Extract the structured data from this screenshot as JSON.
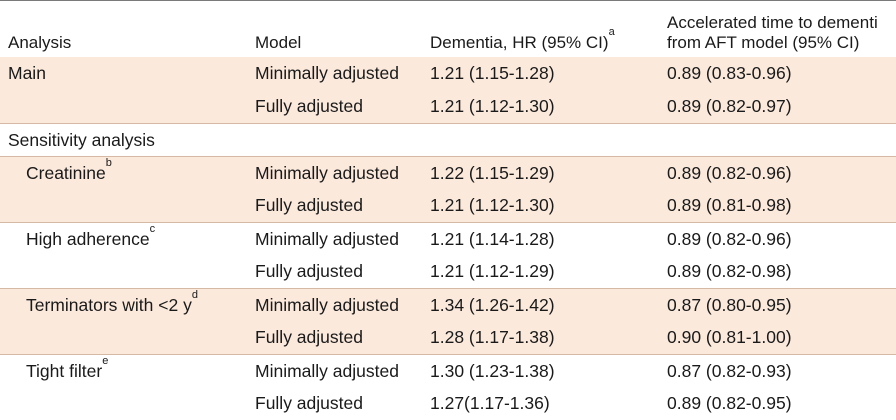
{
  "header": {
    "analysis": "Analysis",
    "model": "Model",
    "hr": "Dementia, HR (95% CI)",
    "hr_sup": "a",
    "aft_line1": "Accelerated time to dementi",
    "aft_line2": "from AFT model (95% CI)"
  },
  "rows": [
    {
      "analysis": "Main",
      "sup": "",
      "model": "Minimally adjusted",
      "hr": "1.21 (1.15-1.28)",
      "aft": "0.89 (0.83-0.96)"
    },
    {
      "analysis": "",
      "sup": "",
      "model": "Fully adjusted",
      "hr": "1.21 (1.12-1.30)",
      "aft": "0.89 (0.82-0.97)"
    },
    {
      "analysis": "Sensitivity analysis",
      "sup": "",
      "model": "",
      "hr": "",
      "aft": ""
    },
    {
      "analysis": "Creatinine",
      "sup": "b",
      "model": "Minimally adjusted",
      "hr": "1.22 (1.15-1.29)",
      "aft": "0.89 (0.82-0.96)"
    },
    {
      "analysis": "",
      "sup": "",
      "model": "Fully adjusted",
      "hr": "1.21 (1.12-1.30)",
      "aft": "0.89 (0.81-0.98)"
    },
    {
      "analysis": "High adherence",
      "sup": "c",
      "model": "Minimally adjusted",
      "hr": "1.21 (1.14-1.28)",
      "aft": "0.89 (0.82-0.96)"
    },
    {
      "analysis": "",
      "sup": "",
      "model": "Fully adjusted",
      "hr": "1.21 (1.12-1.29)",
      "aft": "0.89 (0.82-0.98)"
    },
    {
      "analysis": "Terminators with <2 y",
      "sup": "d",
      "model": "Minimally adjusted",
      "hr": "1.34 (1.26-1.42)",
      "aft": "0.87 (0.80-0.95)"
    },
    {
      "analysis": "",
      "sup": "",
      "model": "Fully adjusted",
      "hr": "1.28 (1.17-1.38)",
      "aft": "0.90 (0.81-1.00)"
    },
    {
      "analysis": "Tight filter",
      "sup": "e",
      "model": "Minimally adjusted",
      "hr": "1.30 (1.23-1.38)",
      "aft": "0.87 (0.82-0.93)"
    },
    {
      "analysis": "",
      "sup": "",
      "model": "Fully adjusted",
      "hr": "1.27(1.17-1.36)",
      "aft": "0.89 (0.82-0.95)"
    }
  ]
}
